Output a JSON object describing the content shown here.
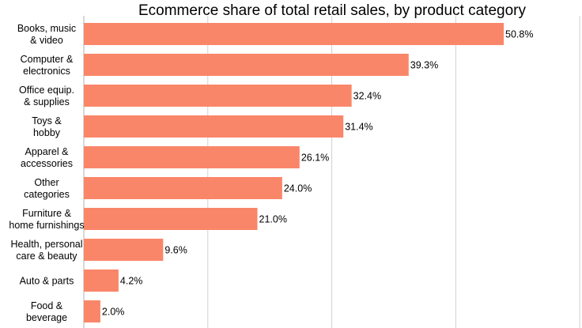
{
  "chart_data": {
    "type": "bar",
    "orientation": "horizontal",
    "title": "Ecommerce share of total retail sales, by product category",
    "categories": [
      [
        "Books, music",
        "& video"
      ],
      [
        "Computer &",
        "electronics"
      ],
      [
        "Office equip.",
        "& supplies"
      ],
      [
        "Toys &",
        "hobby"
      ],
      [
        "Apparel &",
        "accessories"
      ],
      [
        "Other",
        "categories"
      ],
      [
        "Furniture &",
        "home furnishings"
      ],
      [
        "Health, personal",
        "care & beauty"
      ],
      [
        "Auto & parts"
      ],
      [
        "Food &",
        "beverage"
      ]
    ],
    "values": [
      50.8,
      39.3,
      32.4,
      31.4,
      26.1,
      24.0,
      21.0,
      9.6,
      4.2,
      2.0
    ],
    "value_labels": [
      "50.8%",
      "39.3%",
      "32.4%",
      "31.4%",
      "26.1%",
      "24.0%",
      "21.0%",
      "9.6%",
      "4.2%",
      "2.0%"
    ],
    "xlim": [
      0,
      60
    ],
    "gridlines_x": [
      0,
      15,
      30,
      45,
      60
    ],
    "grid": true,
    "legend": "none",
    "bar_color": "#FA8669"
  }
}
